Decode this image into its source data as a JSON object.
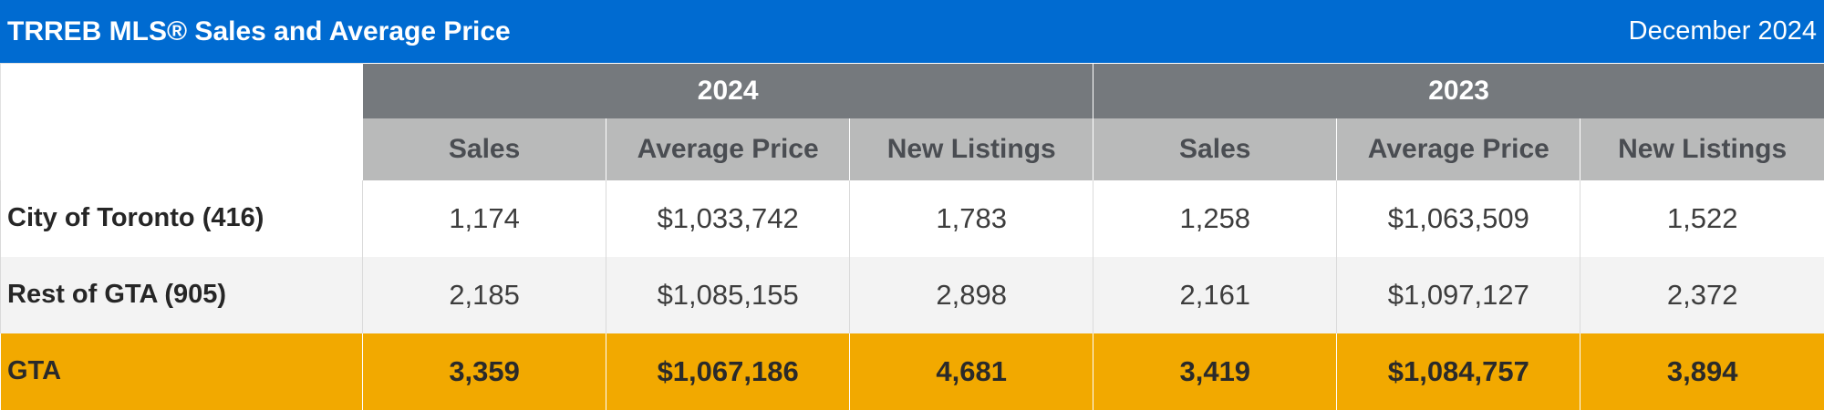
{
  "header": {
    "title": "TRREB MLS® Sales and Average Price",
    "period": "December 2024"
  },
  "colors": {
    "title_bar": "#006bd1",
    "year_header": "#75797d",
    "column_header": "#b9baba",
    "total_row": "#f2a900",
    "alt_row": "#f3f3f3"
  },
  "table": {
    "years": [
      "2024",
      "2023"
    ],
    "columns": [
      "Sales",
      "Average Price",
      "New Listings",
      "Sales",
      "Average Price",
      "New Listings"
    ],
    "rows": [
      {
        "label": "City of Toronto (416)",
        "values": [
          "1,174",
          "$1,033,742",
          "1,783",
          "1,258",
          "$1,063,509",
          "1,522"
        ]
      },
      {
        "label": "Rest of GTA (905)",
        "values": [
          "2,185",
          "$1,085,155",
          "2,898",
          "2,161",
          "$1,097,127",
          "2,372"
        ]
      },
      {
        "label": "GTA",
        "values": [
          "3,359",
          "$1,067,186",
          "4,681",
          "3,419",
          "$1,084,757",
          "3,894"
        ]
      }
    ]
  }
}
